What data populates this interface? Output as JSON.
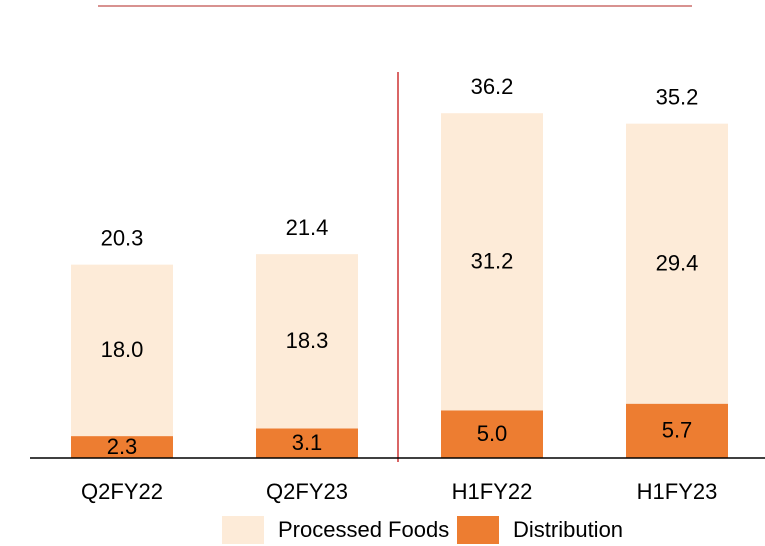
{
  "chart_data": {
    "type": "stacked_bar",
    "categories": [
      "Q2FY22",
      "Q2FY23",
      "H1FY22",
      "H1FY23"
    ],
    "series": [
      {
        "name": "Distribution",
        "color": "#ed7d31",
        "values": [
          2.3,
          3.1,
          5.0,
          5.7
        ],
        "value_labels": [
          "2.3",
          "3.1",
          "5.0",
          "5.7"
        ]
      },
      {
        "name": "Processed Foods",
        "color": "#fdebd8",
        "values": [
          18.0,
          18.3,
          31.2,
          29.4
        ],
        "value_labels": [
          "18.0",
          "18.3",
          "31.2",
          "29.4"
        ]
      }
    ],
    "totals": [
      "20.3",
      "21.4",
      "36.2",
      "35.2"
    ],
    "ylim": [
      0,
      40
    ]
  }
}
